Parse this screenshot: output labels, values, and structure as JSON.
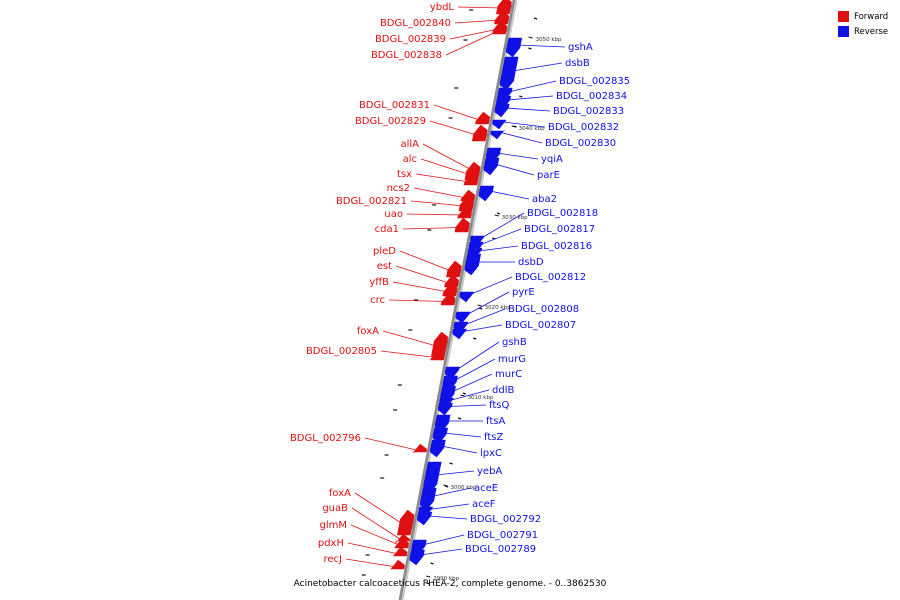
{
  "title": "Acinetobacter calcoaceticus PHEA-2, complete genome. - 0..3862530",
  "legend": [
    {
      "label": "Forward",
      "color": "#e01010"
    },
    {
      "label": "Reverse",
      "color": "#1010e8"
    }
  ],
  "colors": {
    "forward": "#e01010",
    "reverse": "#1010e8",
    "axis": "#8a8a8a",
    "tick": "#111111"
  },
  "scale_labels": [
    {
      "text": "3050 kbp",
      "kbp": 3050
    },
    {
      "text": "3040 kbp",
      "kbp": 3040
    },
    {
      "text": "3030 kbp",
      "kbp": 3030
    },
    {
      "text": "3020 kbp",
      "kbp": 3020
    },
    {
      "text": "3010 kbp",
      "kbp": 3010
    },
    {
      "text": "3000 kbp",
      "kbp": 3000
    },
    {
      "text": "2990 kbp",
      "kbp": 2990
    }
  ],
  "forward_genes": [
    {
      "name": "ybdL"
    },
    {
      "name": "BDGL_002840"
    },
    {
      "name": "BDGL_002839"
    },
    {
      "name": "BDGL_002838"
    },
    {
      "name": "BDGL_002831"
    },
    {
      "name": "BDGL_002829"
    },
    {
      "name": "allA"
    },
    {
      "name": "alc"
    },
    {
      "name": "tsx"
    },
    {
      "name": "ncs2"
    },
    {
      "name": "BDGL_002821"
    },
    {
      "name": "uao"
    },
    {
      "name": "cda1"
    },
    {
      "name": "pleD"
    },
    {
      "name": "est"
    },
    {
      "name": "yffB"
    },
    {
      "name": "crc"
    },
    {
      "name": "foxA"
    },
    {
      "name": "BDGL_002805"
    },
    {
      "name": "BDGL_002796"
    },
    {
      "name": "foxA"
    },
    {
      "name": "guaB"
    },
    {
      "name": "glmM"
    },
    {
      "name": "pdxH"
    },
    {
      "name": "recJ"
    }
  ],
  "reverse_genes": [
    {
      "name": "gshA"
    },
    {
      "name": "dsbB"
    },
    {
      "name": "BDGL_002835"
    },
    {
      "name": "BDGL_002834"
    },
    {
      "name": "BDGL_002833"
    },
    {
      "name": "BDGL_002832"
    },
    {
      "name": "BDGL_002830"
    },
    {
      "name": "yqiA"
    },
    {
      "name": "parE"
    },
    {
      "name": "aba2"
    },
    {
      "name": "BDGL_002818"
    },
    {
      "name": "BDGL_002817"
    },
    {
      "name": "BDGL_002816"
    },
    {
      "name": "dsbD"
    },
    {
      "name": "BDGL_002812"
    },
    {
      "name": "pyrE"
    },
    {
      "name": "BDGL_002808"
    },
    {
      "name": "BDGL_002807"
    },
    {
      "name": "gshB"
    },
    {
      "name": "murG"
    },
    {
      "name": "murC"
    },
    {
      "name": "ddlB"
    },
    {
      "name": "ftsQ"
    },
    {
      "name": "ftsA"
    },
    {
      "name": "ftsZ"
    },
    {
      "name": "lpxC"
    },
    {
      "name": "yebA"
    },
    {
      "name": "aceE"
    },
    {
      "name": "aceF"
    },
    {
      "name": "BDGL_002792"
    },
    {
      "name": "BDGL_002791"
    },
    {
      "name": "BDGL_002789"
    }
  ]
}
